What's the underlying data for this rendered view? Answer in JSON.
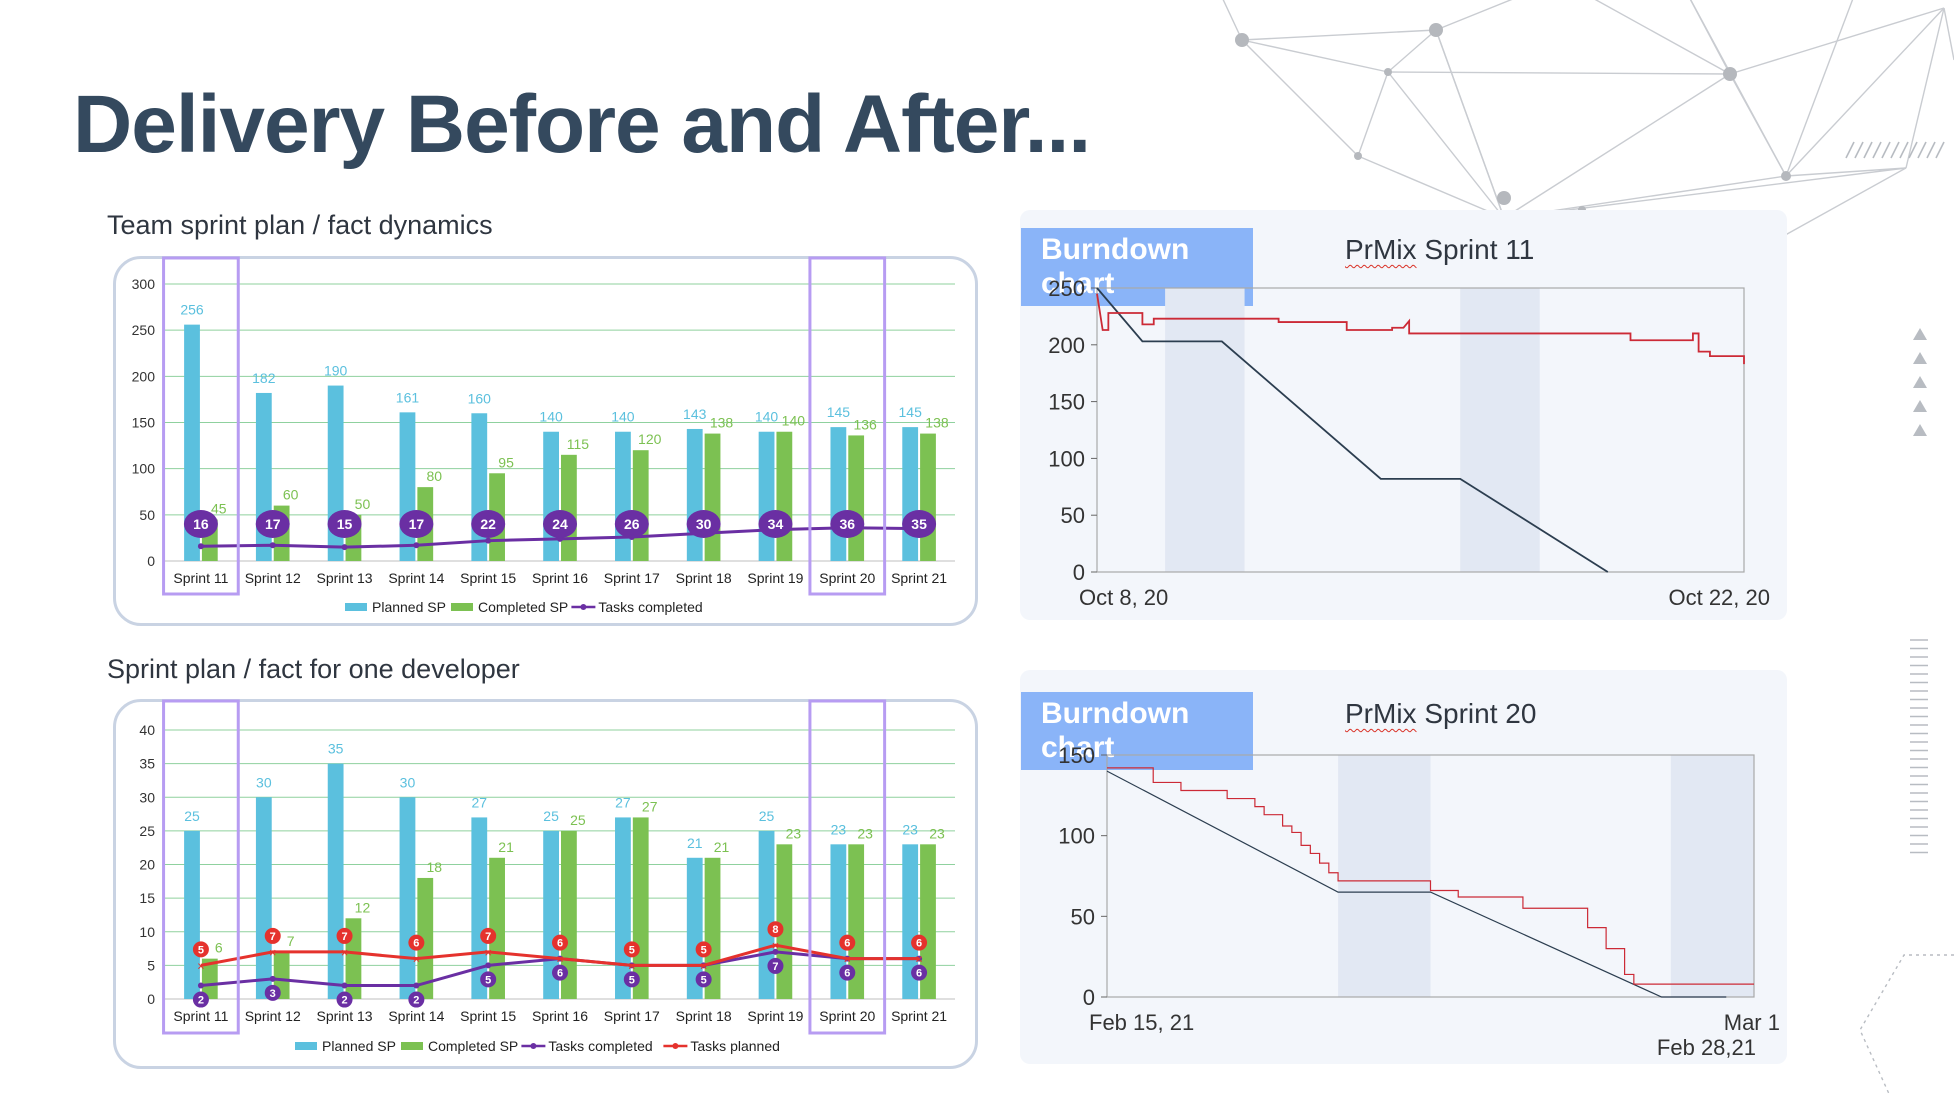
{
  "page": {
    "title": "Delivery Before and After..."
  },
  "charts": {
    "team": {
      "heading": "Team sprint plan / fact dynamics"
    },
    "dev": {
      "heading": "Sprint plan / fact for one developer"
    },
    "burn1": {
      "badge": "Burndown chart",
      "sprint_prefix": "PrMix",
      "sprint_suffix": " Sprint 11"
    },
    "burn2": {
      "badge": "Burndown chart",
      "sprint_prefix": "PrMix",
      "sprint_suffix": " Sprint 20"
    }
  },
  "colors": {
    "planned": "#5bc0de",
    "completed": "#7cc152",
    "tasks_completed": "#6a2fa3",
    "tasks_planned": "#e5322d",
    "highlight": "#b79cf2",
    "burn_ideal": "#2c3e50",
    "burn_actual": "#cc2a36",
    "grid": "#8fd19e"
  },
  "chart_data": [
    {
      "type": "bar",
      "categories": [
        "Sprint 11",
        "Sprint 12",
        "Sprint 13",
        "Sprint 14",
        "Sprint 15",
        "Sprint 16",
        "Sprint 17",
        "Sprint 18",
        "Sprint 19",
        "Sprint 20",
        "Sprint 21"
      ],
      "series": [
        {
          "name": "Planned SP",
          "values": [
            256,
            182,
            190,
            161,
            160,
            140,
            140,
            143,
            140,
            145,
            145
          ]
        },
        {
          "name": "Completed SP",
          "values": [
            45,
            60,
            50,
            80,
            95,
            115,
            120,
            138,
            140,
            136,
            138
          ]
        },
        {
          "name": "Tasks completed",
          "type": "line",
          "values": [
            16,
            17,
            15,
            17,
            22,
            24,
            26,
            30,
            34,
            36,
            35
          ]
        }
      ],
      "yticks": [
        "0",
        "50",
        "100",
        "150",
        "200",
        "250",
        "300"
      ],
      "ylim": [
        0,
        300
      ],
      "highlighted": [
        "Sprint 11",
        "Sprint 20"
      ],
      "legend": "bottom"
    },
    {
      "type": "bar",
      "categories": [
        "Sprint 11",
        "Sprint 12",
        "Sprint 13",
        "Sprint 14",
        "Sprint 15",
        "Sprint 16",
        "Sprint 17",
        "Sprint 18",
        "Sprint 19",
        "Sprint 20",
        "Sprint 21"
      ],
      "series": [
        {
          "name": "Planned SP",
          "values": [
            25,
            30,
            35,
            30,
            27,
            25,
            27,
            21,
            25,
            23,
            23
          ]
        },
        {
          "name": "Completed SP",
          "values": [
            6,
            7,
            12,
            18,
            21,
            25,
            27,
            21,
            23,
            23,
            23
          ]
        },
        {
          "name": "Tasks completed",
          "type": "line",
          "values": [
            2,
            3,
            2,
            2,
            5,
            6,
            5,
            5,
            7,
            6,
            6
          ]
        },
        {
          "name": "Tasks planned",
          "type": "line",
          "values": [
            5,
            7,
            7,
            6,
            7,
            6,
            5,
            5,
            8,
            6,
            6
          ]
        }
      ],
      "yticks": [
        "0",
        "5",
        "10",
        "15",
        "20",
        "25",
        "30",
        "35",
        "40"
      ],
      "ylim": [
        0,
        40
      ],
      "highlighted": [
        "Sprint 11",
        "Sprint 20"
      ],
      "legend": "bottom"
    },
    {
      "type": "line",
      "xticks": [
        "Oct 8, 20",
        "Oct 22, 20"
      ],
      "yticks": [
        "0",
        "50",
        "100",
        "150",
        "200",
        "250"
      ],
      "ylim": [
        0,
        250
      ],
      "series": [
        {
          "values": [
            [
              0,
              250
            ],
            [
              4,
              203
            ],
            [
              11,
              203
            ],
            [
              25,
              82
            ],
            [
              32,
              82
            ],
            [
              45,
              0
            ]
          ]
        },
        {
          "values": [
            [
              0,
              245
            ],
            [
              0.5,
              213
            ],
            [
              1,
              213
            ],
            [
              1,
              228
            ],
            [
              4,
              228
            ],
            [
              4,
              218
            ],
            [
              5,
              218
            ],
            [
              5,
              223
            ],
            [
              16,
              223
            ],
            [
              16,
              220
            ],
            [
              22,
              220
            ],
            [
              22,
              213
            ],
            [
              26,
              213
            ],
            [
              26,
              215
            ],
            [
              27,
              215
            ],
            [
              27.5,
              221
            ],
            [
              27.5,
              210
            ],
            [
              47,
              210
            ],
            [
              47,
              204
            ],
            [
              52.5,
              204
            ],
            [
              52.5,
              210
            ],
            [
              53,
              210
            ],
            [
              53,
              194
            ],
            [
              54,
              194
            ],
            [
              54,
              190
            ],
            [
              57,
              190
            ],
            [
              57,
              183
            ]
          ]
        }
      ],
      "x_domain": [
        0,
        57
      ],
      "shaded_bands": [
        [
          6,
          13
        ],
        [
          32,
          39
        ]
      ],
      "legend": "none"
    },
    {
      "type": "line",
      "xticks": [
        "Feb 15, 21",
        "Mar 1"
      ],
      "extra_label": "Feb 28,21",
      "yticks": [
        "0",
        "50",
        "100",
        "150"
      ],
      "ylim": [
        0,
        150
      ],
      "series": [
        {
          "values": [
            [
              0,
              140
            ],
            [
              25,
              65
            ],
            [
              35,
              65
            ],
            [
              60,
              0
            ],
            [
              67,
              0
            ]
          ]
        },
        {
          "values": [
            [
              0,
              142
            ],
            [
              5,
              142
            ],
            [
              5,
              133
            ],
            [
              8,
              133
            ],
            [
              8,
              128
            ],
            [
              13,
              128
            ],
            [
              13,
              123
            ],
            [
              16,
              123
            ],
            [
              16,
              118
            ],
            [
              17,
              118
            ],
            [
              17,
              113
            ],
            [
              19,
              113
            ],
            [
              19,
              106
            ],
            [
              20,
              106
            ],
            [
              20,
              102
            ],
            [
              21,
              102
            ],
            [
              21,
              94
            ],
            [
              22,
              94
            ],
            [
              22,
              89
            ],
            [
              23,
              89
            ],
            [
              23,
              83
            ],
            [
              24,
              83
            ],
            [
              24,
              77
            ],
            [
              25,
              77
            ],
            [
              25,
              72
            ],
            [
              35,
              72
            ],
            [
              35,
              66
            ],
            [
              38,
              66
            ],
            [
              38,
              62
            ],
            [
              45,
              62
            ],
            [
              45,
              55
            ],
            [
              52,
              55
            ],
            [
              52,
              43
            ],
            [
              54,
              43
            ],
            [
              54,
              30
            ],
            [
              56,
              30
            ],
            [
              56,
              14
            ],
            [
              57,
              14
            ],
            [
              57,
              8
            ],
            [
              70,
              8
            ]
          ]
        }
      ],
      "x_domain": [
        0,
        70
      ],
      "shaded_bands": [
        [
          25,
          35
        ],
        [
          61,
          70
        ]
      ],
      "legend": "none"
    }
  ]
}
